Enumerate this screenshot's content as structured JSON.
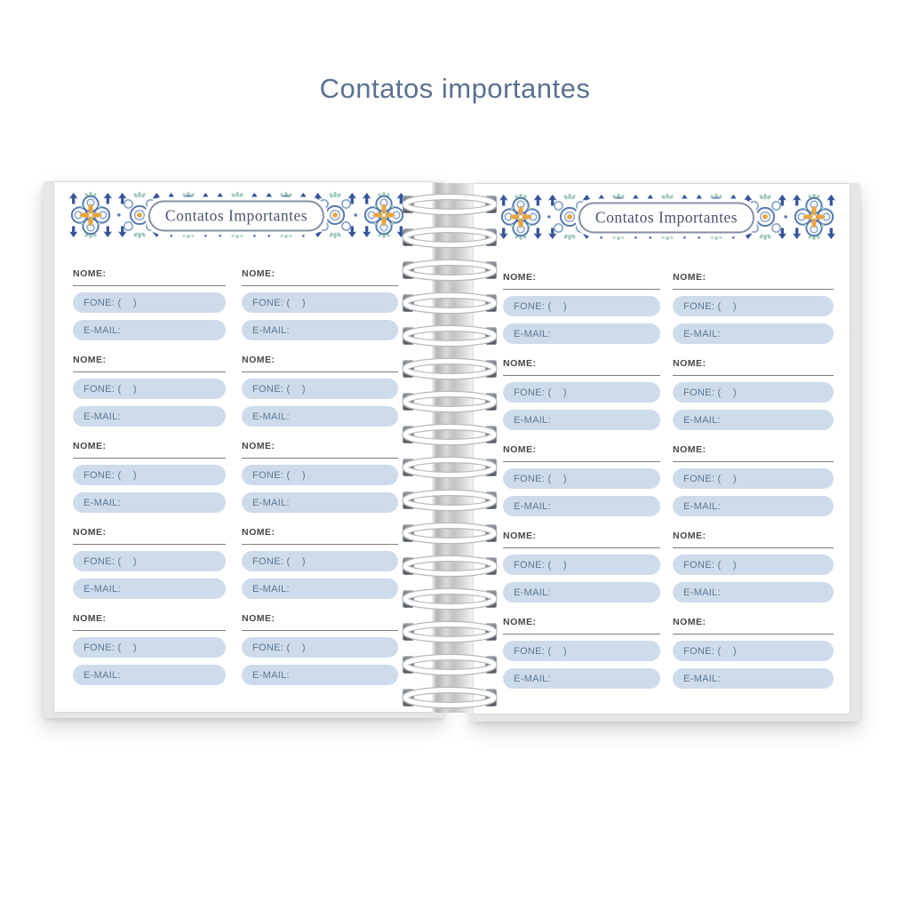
{
  "page_title": "Contatos importantes",
  "notebook": {
    "banner_label": "Contatos Importantes",
    "pages": 2,
    "columns_per_page": 2,
    "blocks_per_column": 5,
    "contact_block": {
      "name_label": "NOME:",
      "phone_label": "FONE: (    )",
      "email_label": "E-MAIL:"
    },
    "banner": {
      "tiles_per_band": 7
    },
    "binding": {
      "rings": 16
    },
    "colors": {
      "title_text": "#5b7190",
      "banner_text": "#47536f",
      "pill_background": "#cddbeb",
      "pill_text": "#5d7994",
      "name_text": "#474747",
      "tile_blue": "#5377b0",
      "tile_navy": "#34549b",
      "tile_green": "#a3ccba",
      "tile_yellow": "#e9a63e"
    }
  }
}
